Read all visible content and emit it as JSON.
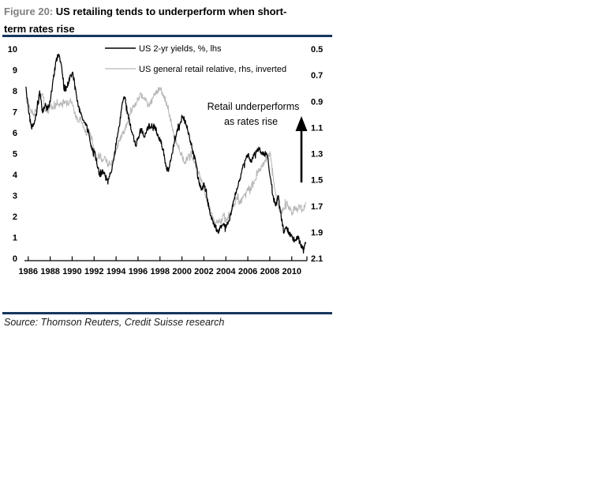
{
  "header": {
    "figure_label": "Figure 20:",
    "title_line1": "US retailing tends to underperform when short-",
    "title_line2": "term rates rise"
  },
  "source_line": "Source: Thomson Reuters, Credit Suisse research",
  "colors": {
    "rule_navy": "#17365d",
    "figure_label_gray": "#808080",
    "yields_line": "#000000",
    "retail_line": "#b9b9b9"
  },
  "chart_data": {
    "type": "line",
    "title": "US retailing tends to underperform when short-term rates rise",
    "legend_position": "top-left-inside",
    "grid": false,
    "legend": [
      {
        "label": "US 2-yr yields, %, lhs",
        "color": "#000000"
      },
      {
        "label": "US general retail relative, rhs, inverted",
        "color": "#b9b9b9"
      }
    ],
    "annotation": {
      "line1": "Retail underperforms",
      "line2": "as rates rise",
      "arrow": "up"
    },
    "x_range": [
      1985.8,
      2011.6
    ],
    "x_tick_labels": [
      "1986",
      "1988",
      "1990",
      "1992",
      "1994",
      "1996",
      "1998",
      "2000",
      "2002",
      "2004",
      "2006",
      "2008",
      "2010"
    ],
    "left_axis": {
      "name": "US 2-yr yields, %",
      "range": [
        0,
        10
      ],
      "ticks": [
        "10",
        "9",
        "8",
        "7",
        "6",
        "5",
        "4",
        "3",
        "2",
        "1",
        "0"
      ]
    },
    "right_axis": {
      "name": "US general retail relative, inverted",
      "range": [
        0.5,
        2.1
      ],
      "inverted": true,
      "ticks": [
        "0.5",
        "0.7",
        "0.9",
        "1.1",
        "1.3",
        "1.5",
        "1.7",
        "1.9",
        "2.1"
      ]
    },
    "series_start_year": 1986.0,
    "series_step_years": 0.25,
    "series": [
      {
        "name": "US 2-yr yields, %, lhs",
        "axis": "left",
        "color": "#000000",
        "values": [
          8.2,
          7.0,
          6.3,
          6.4,
          7.0,
          8.0,
          7.0,
          7.3,
          7.1,
          7.6,
          8.6,
          9.4,
          9.75,
          9.2,
          8.0,
          8.2,
          8.6,
          8.9,
          8.2,
          7.3,
          6.9,
          6.6,
          6.4,
          5.9,
          5.2,
          5.1,
          4.4,
          3.9,
          4.2,
          3.9,
          3.8,
          4.1,
          4.7,
          5.6,
          6.3,
          7.3,
          7.7,
          7.0,
          6.4,
          5.9,
          5.4,
          5.8,
          6.2,
          5.8,
          6.1,
          6.4,
          6.3,
          6.3,
          5.9,
          5.6,
          5.2,
          4.4,
          4.15,
          4.8,
          5.5,
          6.1,
          6.4,
          6.75,
          6.6,
          6.1,
          5.6,
          5.1,
          4.5,
          3.7,
          3.3,
          3.5,
          2.9,
          2.2,
          1.8,
          1.5,
          1.25,
          1.5,
          1.6,
          1.5,
          1.8,
          2.3,
          2.9,
          3.3,
          3.8,
          4.4,
          4.7,
          5.0,
          4.6,
          4.9,
          5.1,
          5.2,
          5.0,
          5.0,
          4.9,
          3.9,
          3.0,
          2.5,
          3.0,
          2.0,
          1.2,
          1.5,
          1.15,
          1.0,
          0.85,
          1.05,
          0.7,
          0.45,
          0.7
        ]
      },
      {
        "name": "US general retail relative, rhs, inverted",
        "axis": "right",
        "color": "#b9b9b9",
        "values": [
          0.88,
          0.93,
          0.98,
          1.0,
          0.95,
          0.88,
          0.84,
          0.96,
          0.98,
          0.93,
          0.95,
          0.93,
          0.92,
          0.93,
          0.9,
          0.92,
          0.9,
          0.93,
          1.0,
          1.06,
          1.03,
          1.09,
          1.16,
          1.12,
          1.2,
          1.28,
          1.35,
          1.32,
          1.36,
          1.33,
          1.4,
          1.38,
          1.35,
          1.27,
          1.2,
          1.16,
          1.12,
          1.06,
          1.0,
          0.95,
          0.93,
          0.88,
          0.84,
          0.88,
          0.9,
          0.94,
          0.89,
          0.84,
          0.82,
          0.8,
          0.85,
          0.9,
          0.98,
          1.06,
          1.16,
          1.22,
          1.28,
          1.33,
          1.37,
          1.33,
          1.3,
          1.34,
          1.38,
          1.44,
          1.5,
          1.58,
          1.66,
          1.72,
          1.78,
          1.84,
          1.81,
          1.83,
          1.77,
          1.81,
          1.79,
          1.73,
          1.68,
          1.65,
          1.67,
          1.64,
          1.6,
          1.56,
          1.57,
          1.52,
          1.46,
          1.43,
          1.4,
          1.35,
          1.32,
          1.3,
          1.47,
          1.6,
          1.7,
          1.755,
          1.72,
          1.67,
          1.72,
          1.76,
          1.7,
          1.74,
          1.7,
          1.73,
          1.67
        ]
      }
    ]
  }
}
